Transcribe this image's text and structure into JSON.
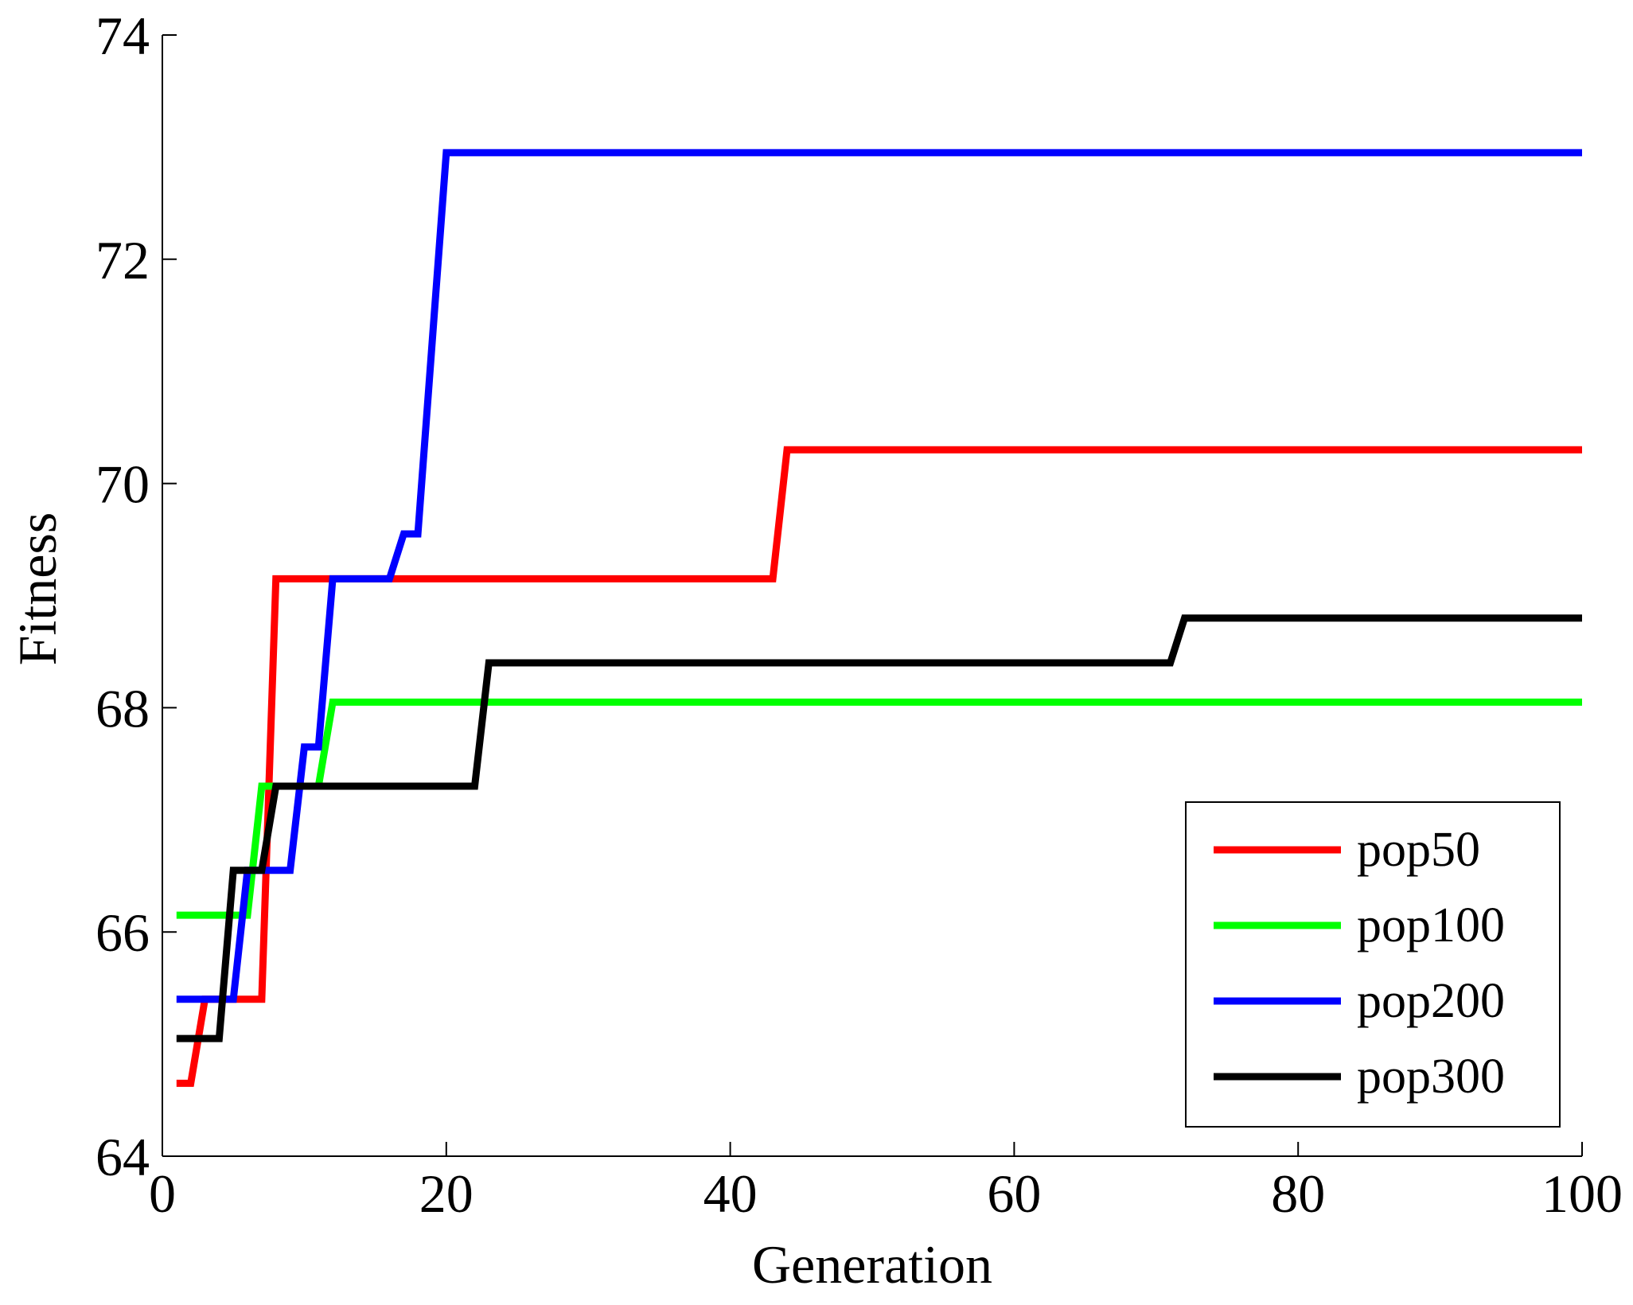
{
  "chart_data": {
    "type": "line",
    "title": "",
    "xlabel": "Generation",
    "ylabel": "Fitness",
    "xlim": [
      0,
      100
    ],
    "ylim": [
      64,
      74
    ],
    "xticks": [
      0,
      20,
      40,
      60,
      80,
      100
    ],
    "yticks": [
      64,
      66,
      68,
      70,
      72,
      74
    ],
    "grid": false,
    "legend_position": "bottom-right",
    "series": [
      {
        "name": "pop50",
        "color": "#ff0000",
        "x": [
          1,
          2,
          3,
          4,
          5,
          6,
          7,
          8,
          16,
          43,
          44,
          100
        ],
        "y": [
          64.65,
          64.65,
          65.4,
          65.4,
          65.4,
          65.4,
          65.4,
          69.15,
          69.15,
          69.15,
          70.3,
          70.3
        ]
      },
      {
        "name": "pop100",
        "color": "#00ff00",
        "x": [
          1,
          6,
          7,
          8,
          11,
          12,
          100
        ],
        "y": [
          66.15,
          66.15,
          67.3,
          67.3,
          67.3,
          68.05,
          68.05
        ]
      },
      {
        "name": "pop200",
        "color": "#0000ff",
        "x": [
          1,
          5,
          6,
          9,
          10,
          11,
          12,
          16,
          17,
          18,
          20,
          100
        ],
        "y": [
          65.4,
          65.4,
          66.55,
          66.55,
          67.65,
          67.65,
          69.15,
          69.15,
          69.55,
          69.55,
          72.95,
          72.95
        ]
      },
      {
        "name": "pop300",
        "color": "#000000",
        "x": [
          1,
          4,
          5,
          7,
          8,
          22,
          23,
          71,
          72,
          100
        ],
        "y": [
          65.05,
          65.05,
          66.55,
          66.55,
          67.3,
          67.3,
          68.4,
          68.4,
          68.8,
          68.8
        ]
      }
    ]
  }
}
